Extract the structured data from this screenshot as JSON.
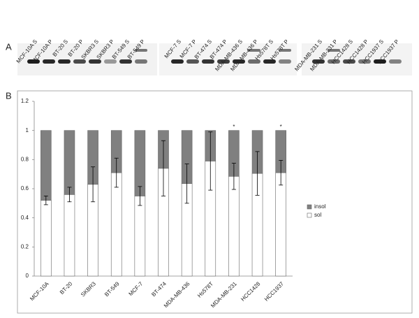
{
  "panel_a": {
    "label": "A",
    "lanes": [
      "MCF-10A S",
      "MCF-10A P",
      "BT-20 S",
      "BT-20 P",
      "SKBR3 S",
      "SKBR3 P",
      "BT-549 S",
      "BT-549 P",
      "MCF-7 S",
      "MCF-7 P",
      "BT-474 S",
      "BT-474 P",
      "MDA-MB-436 S",
      "MDA-MB-436 P",
      "Hs578T S",
      "Hs578T P",
      "MDA-MB-231 S",
      "MDA-MB-231 P",
      "HCC1428 S",
      "HCC1428 P",
      "HCC1937 S",
      "HCC1937 P"
    ]
  },
  "chart_data": {
    "type": "stacked-bar",
    "panel_label": "B",
    "categories": [
      "MCF-10A",
      "BT-20",
      "SKBR3",
      "BT-549",
      "MCF-7",
      "BT-474",
      "MDA-MB-436",
      "Hs578T",
      "MDA-MB-231",
      "HCC1428",
      "HCC1937"
    ],
    "series": [
      {
        "name": "sol",
        "color": "#ffffff",
        "values": [
          0.52,
          0.56,
          0.63,
          0.71,
          0.55,
          0.74,
          0.635,
          0.79,
          0.685,
          0.705,
          0.71
        ],
        "errors": [
          0.03,
          0.05,
          0.12,
          0.1,
          0.065,
          0.19,
          0.135,
          0.2,
          0.09,
          0.15,
          0.085
        ]
      },
      {
        "name": "insol",
        "color": "#808080",
        "values": [
          0.48,
          0.44,
          0.37,
          0.29,
          0.45,
          0.26,
          0.365,
          0.21,
          0.315,
          0.295,
          0.29
        ]
      }
    ],
    "annotations": [
      {
        "text": "*",
        "category": "MDA-MB-231"
      },
      {
        "text": "*",
        "category": "HCC1937"
      }
    ],
    "ylim": [
      0,
      1.2
    ],
    "yticks": [
      0,
      0.2,
      0.4,
      0.6,
      0.8,
      1,
      1.2
    ]
  }
}
